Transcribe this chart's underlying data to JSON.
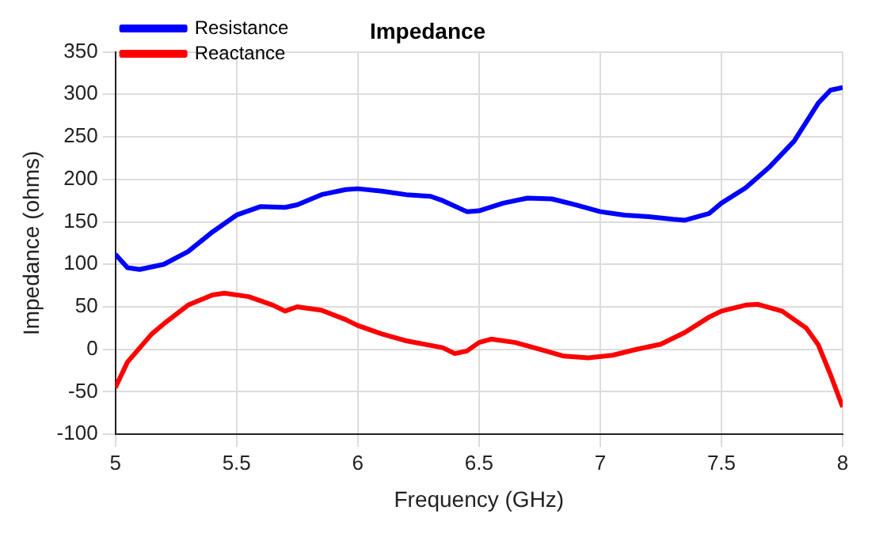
{
  "chart_data": {
    "type": "line",
    "title": "Impedance",
    "xlabel": "Frequency (GHz)",
    "ylabel": "Impedance (ohms)",
    "xlim": [
      5,
      8
    ],
    "xticks": [
      5,
      5.5,
      6,
      6.5,
      7,
      7.5,
      8
    ],
    "ylim": [
      -100,
      350
    ],
    "yticks": [
      -100,
      -50,
      0,
      50,
      100,
      150,
      200,
      250,
      300,
      350
    ],
    "grid": true,
    "legend": "top left",
    "marker": "none",
    "line_style": "solid",
    "series": [
      {
        "name": "Resistance",
        "color": "#0000ff",
        "x": [
          5,
          5.05,
          5.1,
          5.2,
          5.3,
          5.4,
          5.5,
          5.6,
          5.7,
          5.75,
          5.85,
          5.95,
          6,
          6.1,
          6.2,
          6.3,
          6.35,
          6.45,
          6.5,
          6.6,
          6.7,
          6.8,
          6.9,
          7,
          7.1,
          7.2,
          7.3,
          7.35,
          7.45,
          7.5,
          7.6,
          7.7,
          7.8,
          7.9,
          7.95,
          8
        ],
        "values": [
          112,
          96,
          94,
          100,
          115,
          138,
          158,
          168,
          167,
          170,
          182,
          188,
          189,
          186,
          182,
          180,
          175,
          162,
          163,
          172,
          178,
          177,
          170,
          162,
          158,
          156,
          153,
          152,
          160,
          172,
          190,
          215,
          245,
          290,
          305,
          308
        ]
      },
      {
        "name": "Reactance",
        "color": "#ff0000",
        "x": [
          5,
          5.05,
          5.15,
          5.2,
          5.3,
          5.4,
          5.45,
          5.55,
          5.65,
          5.7,
          5.75,
          5.85,
          5.95,
          6,
          6.1,
          6.2,
          6.35,
          6.4,
          6.45,
          6.5,
          6.55,
          6.65,
          6.75,
          6.85,
          6.95,
          7.05,
          7.15,
          7.25,
          7.35,
          7.45,
          7.5,
          7.6,
          7.65,
          7.75,
          7.85,
          7.9,
          7.95,
          8
        ],
        "values": [
          -45,
          -15,
          18,
          30,
          52,
          64,
          66,
          62,
          52,
          45,
          50,
          46,
          35,
          28,
          18,
          10,
          2,
          -5,
          -2,
          8,
          12,
          8,
          0,
          -8,
          -10,
          -7,
          0,
          6,
          20,
          38,
          45,
          52,
          53,
          45,
          25,
          5,
          -30,
          -68
        ]
      }
    ]
  }
}
